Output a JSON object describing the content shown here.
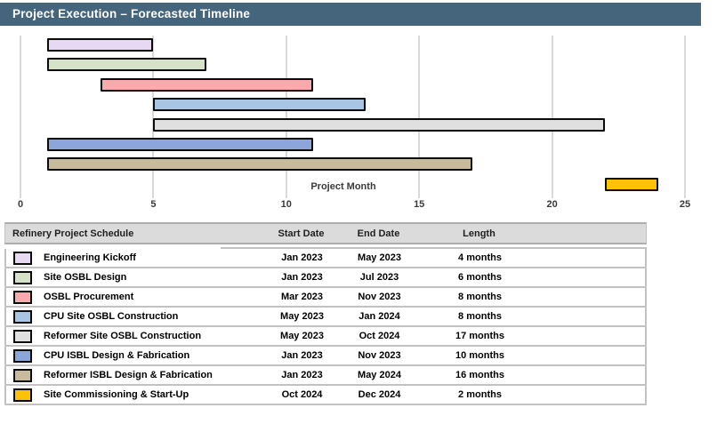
{
  "header": {
    "title": "Project Execution – Forecasted Timeline"
  },
  "colors": {
    "titlebar_bg": "#45657C",
    "titlebar_text": "#FFFFFF",
    "gridline": "#D9D9D9",
    "bar_border": "#0B0B0B",
    "table_header_bg": "#DBDBDB",
    "table_border": "#C2C2C2"
  },
  "chart_data": {
    "type": "bar",
    "subtype": "gantt",
    "title": "Project Execution – Forecasted Timeline",
    "xlabel": "Project Month",
    "xlim": [
      0,
      25
    ],
    "x_ticks": [
      0,
      5,
      10,
      15,
      20,
      25
    ],
    "grid": "vertical",
    "legend_position": "none",
    "tasks": [
      {
        "name": "Engineering Kickoff",
        "start": "Jan 2023",
        "end": "May 2023",
        "length": "4 months",
        "start_month": 1,
        "end_month": 5,
        "color": "#E7D8F3"
      },
      {
        "name": "Site OSBL Design",
        "start": "Jan 2023",
        "end": "Jul 2023",
        "length": "6 months",
        "start_month": 1,
        "end_month": 7,
        "color": "#D6E2C8"
      },
      {
        "name": "OSBL Procurement",
        "start": "Mar 2023",
        "end": "Nov 2023",
        "length": "8 months",
        "start_month": 3,
        "end_month": 11,
        "color": "#FCA9AE"
      },
      {
        "name": "CPU Site OSBL Construction",
        "start": "May 2023",
        "end": "Jan 2024",
        "length": "8 months",
        "start_month": 5,
        "end_month": 13,
        "color": "#A9C5E4"
      },
      {
        "name": "Reformer Site OSBL Construction",
        "start": "May 2023",
        "end": "Oct 2024",
        "length": "17 months",
        "start_month": 5,
        "end_month": 22,
        "color": "#E0E0E0"
      },
      {
        "name": "CPU ISBL Design & Fabrication",
        "start": "Jan 2023",
        "end": "Nov 2023",
        "length": "10 months",
        "start_month": 1,
        "end_month": 11,
        "color": "#8CA5DB"
      },
      {
        "name": "Reformer ISBL Design & Fabrication",
        "start": "Jan 2023",
        "end": "May 2024",
        "length": "16 months",
        "start_month": 1,
        "end_month": 17,
        "color": "#C7BB9C"
      },
      {
        "name": "Site Commissioning & Start-Up",
        "start": "Oct 2024",
        "end": "Dec 2024",
        "length": "2 months",
        "start_month": 22,
        "end_month": 24,
        "color": "#FFC103"
      }
    ]
  },
  "table": {
    "headers": {
      "task": "Refinery Project Schedule",
      "start": "Start Date",
      "end": "End Date",
      "length": "Length"
    }
  }
}
